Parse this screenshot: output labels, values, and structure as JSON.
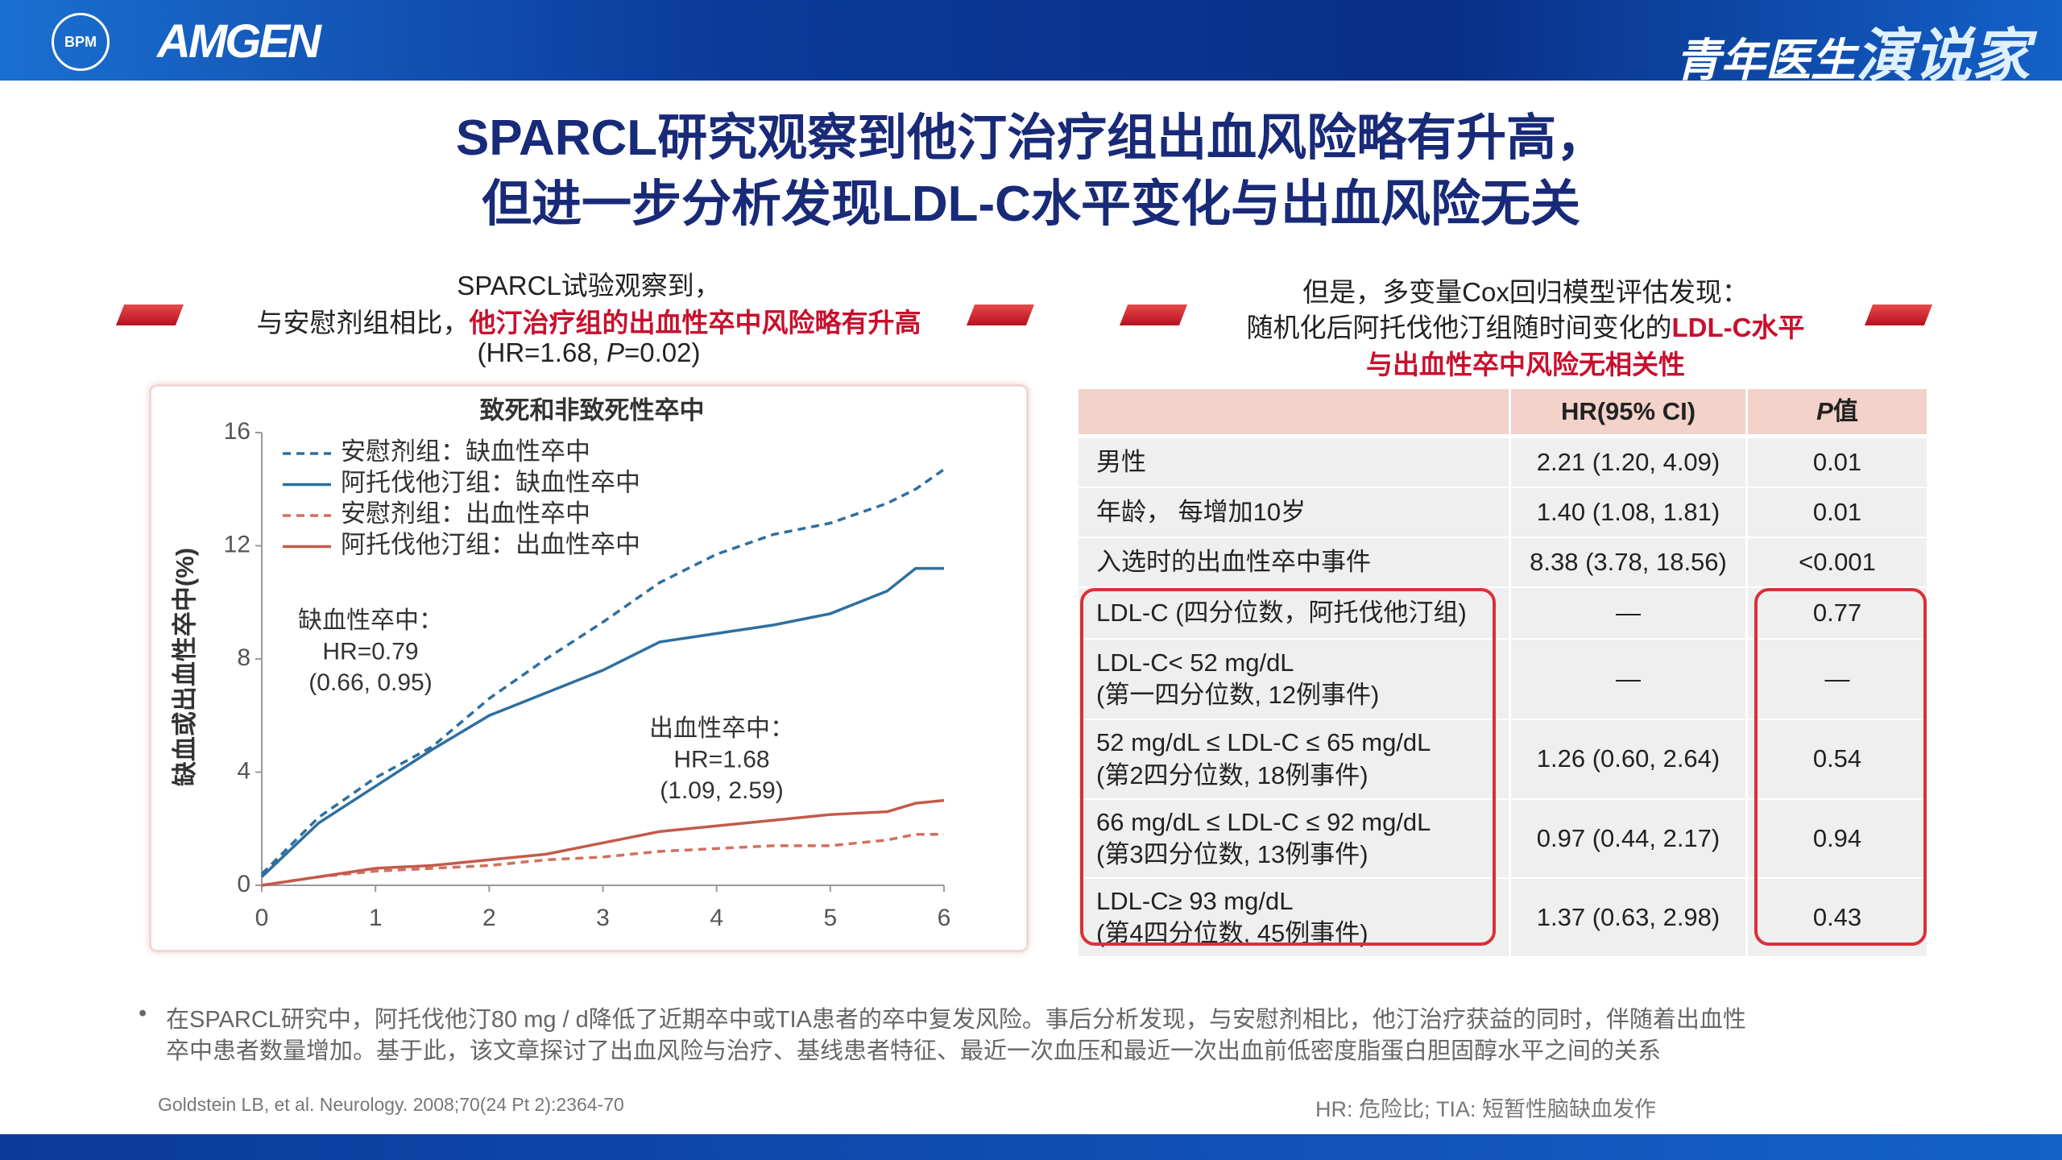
{
  "header": {
    "logo_text": "BPM",
    "brand": "AMGEN",
    "program": [
      "青年医生",
      "演说家"
    ]
  },
  "title": [
    "SPARCL研究观察到他汀治疗组出血风险略有升高，",
    "但进一步分析发现LDL-C水平变化与出血风险无关"
  ],
  "left_heading": [
    [
      {
        "t": "SPARCL试验观察到，"
      }
    ],
    [
      {
        "t": "与安慰剂组相比，"
      },
      {
        "t": "他汀治疗组的出血性卒中风险略有升高",
        "s": "red"
      }
    ],
    [
      {
        "t": "(HR=1.68, "
      },
      {
        "t": "P",
        "s": "italic"
      },
      {
        "t": "=0.02)"
      }
    ]
  ],
  "chart_data": {
    "type": "line",
    "title": "致死和非致死性卒中",
    "y_label": "缺血或出血性卒中(%)",
    "x": [
      0,
      0.5,
      1,
      1.5,
      2,
      2.5,
      3,
      3.5,
      4,
      4.5,
      5,
      5.5,
      5.75,
      6
    ],
    "xlim": [
      0,
      6
    ],
    "xticks": [
      0,
      1,
      2,
      3,
      4,
      5,
      6
    ],
    "ylim": [
      0,
      16
    ],
    "yticks": [
      0,
      4,
      8,
      12,
      16
    ],
    "series": [
      {
        "name": "安慰剂组：缺血性卒中",
        "color": "#2f6f9f",
        "style": "dashed",
        "values": [
          0.4,
          2.4,
          3.8,
          4.9,
          6.6,
          8.0,
          9.3,
          10.7,
          11.7,
          12.4,
          12.8,
          13.5,
          14.0,
          14.7
        ]
      },
      {
        "name": "阿托伐他汀组：缺血性卒中",
        "color": "#2f6f9f",
        "style": "solid",
        "values": [
          0.3,
          2.2,
          3.5,
          4.8,
          6.0,
          6.8,
          7.6,
          8.6,
          8.9,
          9.2,
          9.6,
          10.4,
          11.2,
          11.2
        ]
      },
      {
        "name": "安慰剂组：出血性卒中",
        "color": "#d0705f",
        "style": "dashed",
        "values": [
          0,
          0.3,
          0.5,
          0.6,
          0.7,
          0.9,
          1.0,
          1.2,
          1.3,
          1.4,
          1.4,
          1.6,
          1.8,
          1.8
        ]
      },
      {
        "name": "阿托伐他汀组：出血性卒中",
        "color": "#c45a4a",
        "style": "solid",
        "values": [
          0,
          0.3,
          0.6,
          0.7,
          0.9,
          1.1,
          1.5,
          1.9,
          2.1,
          2.3,
          2.5,
          2.6,
          2.9,
          3.0
        ]
      }
    ],
    "annotations": [
      [
        "缺血性卒中：",
        "HR=0.79",
        "(0.66, 0.95)"
      ],
      [
        "出血性卒中：",
        "HR=1.68",
        "(1.09, 2.59)"
      ]
    ]
  },
  "right_heading": [
    [
      {
        "t": "但是，多变量Cox回归模型评估发现："
      }
    ],
    [
      {
        "t": "随机化后阿托伐他汀组随时间变化的"
      },
      {
        "t": "LDL-C水平",
        "s": "red"
      }
    ],
    [
      {
        "t": "与出血性卒中风险无相关性",
        "s": "red"
      }
    ]
  ],
  "table": {
    "header": [
      [
        {
          "t": ""
        }
      ],
      [
        {
          "t": "HR(95% CI)"
        }
      ],
      [
        {
          "t": "P",
          "s": "italic"
        },
        {
          "t": "值"
        }
      ]
    ],
    "rows": [
      {
        "label": [
          "男性"
        ],
        "hr": "2.21 (1.20, 4.09)",
        "p": "0.01"
      },
      {
        "label": [
          "年龄， 每增加10岁"
        ],
        "hr": "1.40 (1.08, 1.81)",
        "p": "0.01"
      },
      {
        "label": [
          "入选时的出血性卒中事件"
        ],
        "hr": "8.38 (3.78, 18.56)",
        "p": "<0.001"
      },
      {
        "label": [
          "LDL-C (四分位数，阿托伐他汀组)"
        ],
        "hr": "—",
        "p": "0.77"
      },
      {
        "label": [
          "LDL-C< 52 mg/dL",
          "(第一四分位数, 12例事件)"
        ],
        "hr": "—",
        "p": "—"
      },
      {
        "label": [
          "52 mg/dL ≤ LDL-C ≤ 65 mg/dL",
          "(第2四分位数, 18例事件)"
        ],
        "hr": "1.26 (0.60, 2.64)",
        "p": "0.54"
      },
      {
        "label": [
          "66 mg/dL ≤ LDL-C ≤ 92 mg/dL",
          "(第3四分位数, 13例事件)"
        ],
        "hr": "0.97 (0.44, 2.17)",
        "p": "0.94"
      },
      {
        "label": [
          "LDL-C≥ 93 mg/dL",
          "(第4四分位数, 45例事件)"
        ],
        "hr": "1.37 (0.63, 2.98)",
        "p": "0.43"
      }
    ]
  },
  "bullet": [
    "在SPARCL研究中，阿托伐他汀80 mg / d降低了近期卒中或TIA患者的卒中复发风险。事后分析发现，与安慰剂相比，他汀治疗获益的同时，伴随着出血性",
    "卒中患者数量增加。基于此，该文章探讨了出血风险与治疗、基线患者特征、最近一次血压和最近一次出血前低密度脂蛋白胆固醇水平之间的关系"
  ],
  "reference": "Goldstein LB, et al. Neurology. 2008;70(24 Pt 2):2364-70",
  "abbreviations": "HR: 危险比; TIA: 短暂性脑缺血发作"
}
